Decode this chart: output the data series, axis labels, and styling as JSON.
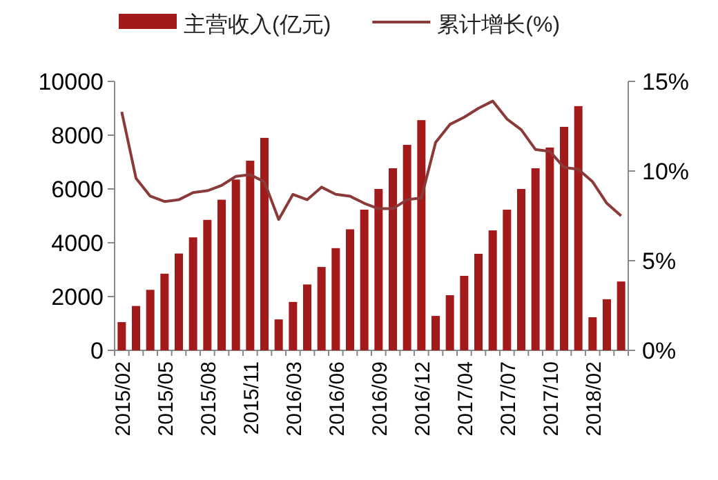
{
  "chart_data": {
    "type": "bar",
    "categories": [
      "2015/02",
      null,
      null,
      "2015/05",
      null,
      null,
      "2015/08",
      null,
      null,
      "2015/11",
      null,
      null,
      "2016/03",
      null,
      null,
      "2016/06",
      null,
      null,
      "2016/09",
      null,
      null,
      "2016/12",
      null,
      null,
      "2017/04",
      null,
      null,
      "2017/07",
      null,
      null,
      "2017/10",
      null,
      null,
      "2018/02",
      null,
      null
    ],
    "series": [
      {
        "name": "主营收入(亿元)",
        "color": "#a31a1a",
        "values": [
          1050,
          1650,
          2250,
          2850,
          3600,
          4200,
          4850,
          5600,
          6350,
          7050,
          7900,
          1150,
          1800,
          2450,
          3100,
          3800,
          4500,
          5230,
          6000,
          6770,
          7640,
          8560,
          1280,
          2050,
          2770,
          3590,
          4460,
          5230,
          6000,
          6770,
          7540,
          8310,
          9080,
          1230,
          1900,
          2560
        ]
      },
      {
        "name": "累计增长(%)",
        "type": "line",
        "axis": "y2",
        "color": "#8b3a3a",
        "values": [
          13.3,
          9.6,
          8.6,
          8.3,
          8.4,
          8.8,
          8.9,
          9.2,
          9.7,
          9.8,
          9.4,
          7.3,
          8.7,
          8.4,
          9.1,
          8.7,
          8.6,
          8.2,
          7.9,
          7.9,
          8.4,
          8.5,
          11.6,
          12.6,
          13.0,
          13.5,
          13.9,
          12.9,
          12.3,
          11.2,
          11.1,
          10.2,
          10.1,
          9.4,
          8.2,
          7.5
        ]
      }
    ],
    "ylim": [
      0,
      10000
    ],
    "yticks": [
      0,
      2000,
      4000,
      6000,
      8000,
      10000
    ],
    "y2lim": [
      0,
      15
    ],
    "y2ticks": [
      {
        "value": 0,
        "label": "0%"
      },
      {
        "value": 5,
        "label": "5%"
      },
      {
        "value": 10,
        "label": "10%"
      },
      {
        "value": 15,
        "label": "15%"
      }
    ],
    "grid": false,
    "legend": "top",
    "marker": "none",
    "line_style": "solid"
  }
}
